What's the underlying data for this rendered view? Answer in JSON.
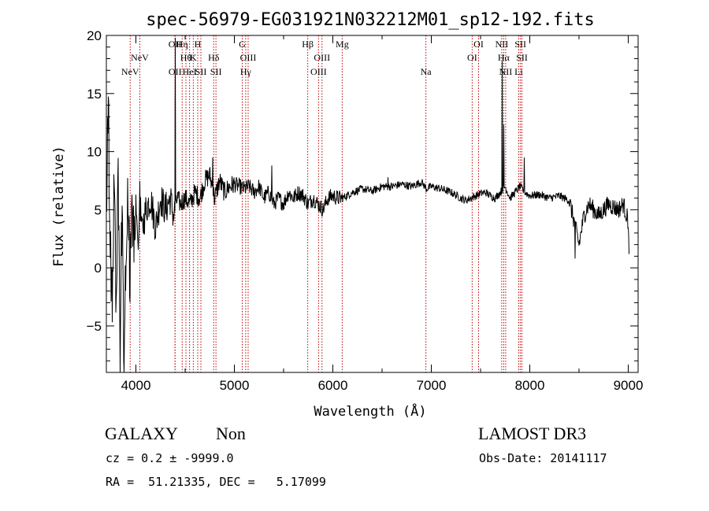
{
  "chart_data": {
    "type": "line",
    "title": "spec-56979-EG031921N032212M01_sp12-192.fits",
    "xlabel": "Wavelength (Å)",
    "ylabel": "Flux (relative)",
    "xlim": [
      3700,
      9100
    ],
    "ylim": [
      -9,
      20
    ],
    "x_ticks": [
      4000,
      5000,
      6000,
      7000,
      8000,
      9000
    ],
    "y_ticks": [
      -5,
      0,
      5,
      10,
      15,
      20
    ],
    "tick_labels_x": [
      "4000",
      "5000",
      "6000",
      "7000",
      "8000",
      "9000"
    ],
    "tick_labels_y": [
      "−5",
      "0",
      "5",
      "10",
      "15",
      "20"
    ],
    "line_color": "#000000",
    "marker_color": "#c00000",
    "spectrum_anchors": [
      [
        3700,
        5
      ],
      [
        3720,
        14
      ],
      [
        3740,
        2
      ],
      [
        3760,
        -4
      ],
      [
        3780,
        8
      ],
      [
        3800,
        -3
      ],
      [
        3820,
        7
      ],
      [
        3840,
        -7
      ],
      [
        3860,
        6
      ],
      [
        3880,
        -8
      ],
      [
        3900,
        3
      ],
      [
        3920,
        6
      ],
      [
        3940,
        -1
      ],
      [
        3960,
        7
      ],
      [
        3980,
        2
      ],
      [
        4000,
        5
      ],
      [
        4020,
        1
      ],
      [
        4040,
        6
      ],
      [
        4060,
        3
      ],
      [
        4080,
        4
      ],
      [
        4100,
        5
      ],
      [
        4150,
        6
      ],
      [
        4200,
        3.5
      ],
      [
        4250,
        6
      ],
      [
        4300,
        5
      ],
      [
        4350,
        6
      ],
      [
        4380,
        4.5
      ],
      [
        4400,
        5
      ],
      [
        4420,
        6
      ],
      [
        4450,
        5.5
      ],
      [
        4500,
        6
      ],
      [
        4550,
        5.5
      ],
      [
        4600,
        6.5
      ],
      [
        4650,
        6
      ],
      [
        4700,
        7.5
      ],
      [
        4750,
        8
      ],
      [
        4800,
        6
      ],
      [
        4850,
        7.5
      ],
      [
        4900,
        6.5
      ],
      [
        4950,
        7
      ],
      [
        5000,
        7.2
      ],
      [
        5050,
        7
      ],
      [
        5100,
        6.8
      ],
      [
        5150,
        7
      ],
      [
        5200,
        6.5
      ],
      [
        5250,
        7
      ],
      [
        5300,
        6
      ],
      [
        5350,
        6.5
      ],
      [
        5400,
        5.5
      ],
      [
        5450,
        6
      ],
      [
        5500,
        5.5
      ],
      [
        5550,
        6.5
      ],
      [
        5600,
        6
      ],
      [
        5650,
        6.5
      ],
      [
        5700,
        6.2
      ],
      [
        5750,
        5.5
      ],
      [
        5800,
        6
      ],
      [
        5850,
        5.5
      ],
      [
        5900,
        5
      ],
      [
        5950,
        6
      ],
      [
        6000,
        6.2
      ],
      [
        6050,
        6
      ],
      [
        6100,
        6
      ],
      [
        6200,
        6.5
      ],
      [
        6300,
        6.8
      ],
      [
        6400,
        6.6
      ],
      [
        6500,
        7
      ],
      [
        6600,
        7
      ],
      [
        6700,
        7.2
      ],
      [
        6800,
        7
      ],
      [
        6900,
        7.4
      ],
      [
        6950,
        6.8
      ],
      [
        7000,
        7
      ],
      [
        7100,
        6.8
      ],
      [
        7200,
        6.5
      ],
      [
        7300,
        6
      ],
      [
        7350,
        5.8
      ],
      [
        7400,
        6
      ],
      [
        7450,
        6.2
      ],
      [
        7500,
        6.4
      ],
      [
        7550,
        6.5
      ],
      [
        7600,
        6.2
      ],
      [
        7650,
        6
      ],
      [
        7700,
        6.5
      ],
      [
        7750,
        7
      ],
      [
        7800,
        6
      ],
      [
        7850,
        6.5
      ],
      [
        7900,
        7
      ],
      [
        7950,
        6.5
      ],
      [
        8000,
        6.2
      ],
      [
        8100,
        6.3
      ],
      [
        8200,
        6
      ],
      [
        8300,
        6.2
      ],
      [
        8400,
        5.8
      ],
      [
        8450,
        4
      ],
      [
        8500,
        2
      ],
      [
        8550,
        4.5
      ],
      [
        8600,
        5.5
      ],
      [
        8700,
        4.5
      ],
      [
        8800,
        5.5
      ],
      [
        8900,
        5
      ],
      [
        8950,
        5.5
      ],
      [
        9000,
        4
      ],
      [
        9010,
        0.2
      ]
    ],
    "spectrum_features": [
      {
        "x": 4400,
        "y": 19.8,
        "note": "spike"
      },
      {
        "x": 4780,
        "y": 9.5,
        "note": "spike"
      },
      {
        "x": 5380,
        "y": 8.8,
        "note": "spike"
      },
      {
        "x": 6560,
        "y": 7.8,
        "note": "spike"
      },
      {
        "x": 7720,
        "y": 17.8,
        "note": "spike"
      },
      {
        "x": 7735,
        "y": 12.3,
        "note": "spike"
      },
      {
        "x": 7930,
        "y": 11.5,
        "note": "spike"
      },
      {
        "x": 7945,
        "y": 9.5,
        "note": "spike"
      },
      {
        "x": 8460,
        "y": 0.8,
        "note": "dip"
      }
    ],
    "emission_lines": [
      {
        "x": 3942,
        "label": "NeV",
        "row": 2
      },
      {
        "x": 4040,
        "label": "NeV",
        "row": 1
      },
      {
        "x": 4397,
        "label": "OII",
        "row": 0
      },
      {
        "x": 4398,
        "label": "OII",
        "row": 2
      },
      {
        "x": 4470,
        "label": "Hη",
        "row": 0
      },
      {
        "x": 4508,
        "label": "Hθ",
        "row": 1
      },
      {
        "x": 4545,
        "label": "HeI",
        "row": 2
      },
      {
        "x": 4583,
        "label": "K",
        "row": 1
      },
      {
        "x": 4628,
        "label": "H",
        "row": 0
      },
      {
        "x": 4660,
        "label": "SII",
        "row": 2
      },
      {
        "x": 4790,
        "label": "Hδ",
        "row": 1
      },
      {
        "x": 4813,
        "label": "SII",
        "row": 2
      },
      {
        "x": 5080,
        "label": "G",
        "row": 0
      },
      {
        "x": 5140,
        "label": "OIII",
        "row": 1
      },
      {
        "x": 5115,
        "label": "Hγ",
        "row": 2
      },
      {
        "x": 5745,
        "label": "Hβ",
        "row": 0
      },
      {
        "x": 5890,
        "label": "OIII",
        "row": 1
      },
      {
        "x": 5855,
        "label": "OIII",
        "row": 2
      },
      {
        "x": 6095,
        "label": "Mg",
        "row": 0
      },
      {
        "x": 6945,
        "label": "Na",
        "row": 2
      },
      {
        "x": 7480,
        "label": "OI",
        "row": 0
      },
      {
        "x": 7415,
        "label": "OI",
        "row": 1
      },
      {
        "x": 7715,
        "label": "NII",
        "row": 0
      },
      {
        "x": 7735,
        "label": "Hα",
        "row": 1
      },
      {
        "x": 7755,
        "label": "NII",
        "row": 2
      },
      {
        "x": 7905,
        "label": "SII",
        "row": 0
      },
      {
        "x": 7920,
        "label": "SII",
        "row": 1
      },
      {
        "x": 7888,
        "label": "Li",
        "row": 2
      }
    ]
  },
  "footer": {
    "object_class": "GALAXY",
    "subclass": "Non",
    "survey": "LAMOST DR3",
    "redshift": "cz = 0.2 ± -9999.0",
    "obs_date": "Obs-Date: 20141117",
    "coords": "RA =  51.21335, DEC =   5.17099"
  }
}
